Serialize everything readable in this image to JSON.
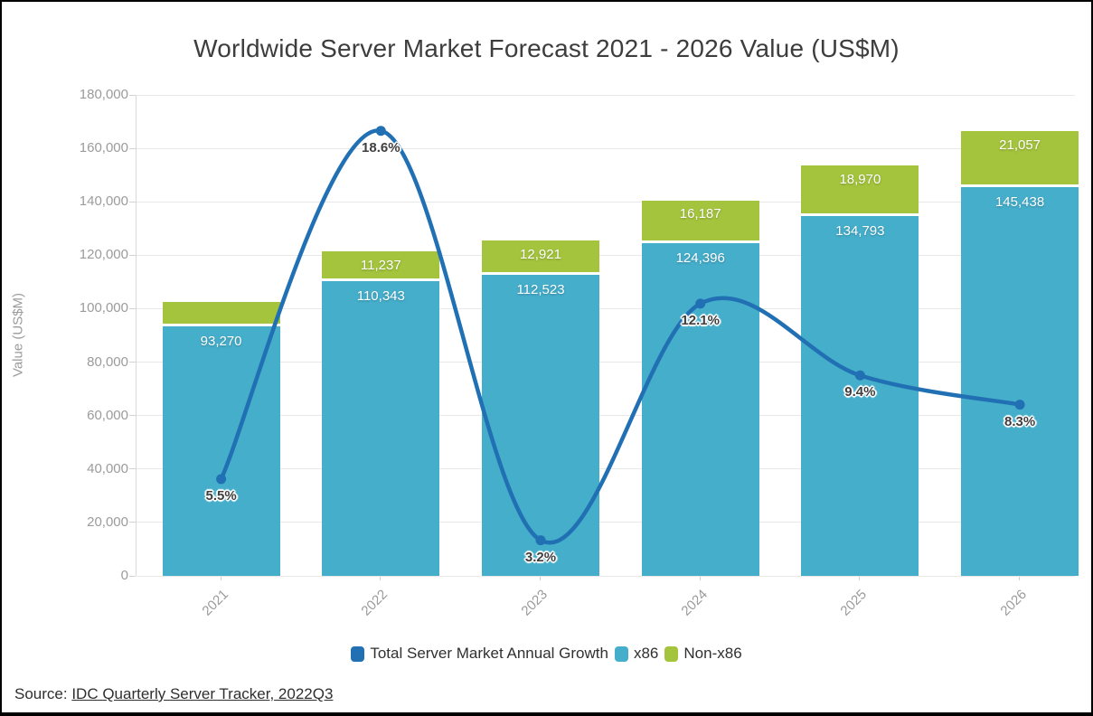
{
  "title": "Worldwide Server Market Forecast 2021 - 2026 Value (US$M)",
  "y_axis": {
    "title": "Value (US$M)",
    "tick_labels": [
      "180,000",
      "160,000",
      "140,000",
      "120,000",
      "100,000",
      "80,000",
      "60,000",
      "40,000",
      "20,000",
      "0"
    ],
    "min": 0,
    "max": 180000,
    "step": 20000
  },
  "x_axis": {
    "tick_labels": [
      "2021",
      "2022",
      "2023",
      "2024",
      "2025",
      "2026"
    ]
  },
  "legend": {
    "items": [
      {
        "label": "Total Server Market Annual Growth",
        "color": "#2170b4"
      },
      {
        "label": "x86",
        "color": "#45aecb"
      },
      {
        "label": "Non-x86",
        "color": "#a4c43d"
      }
    ]
  },
  "source": {
    "prefix": "Source: ",
    "link_text": "IDC Quarterly Server Tracker, 2022Q3"
  },
  "colors": {
    "x86_bar": "#45aecb",
    "non_x86_bar": "#a4c43d",
    "growth_line": "#2170b4",
    "gridline": "#e8e8e8",
    "axis_text": "#9b9b9b",
    "title_text": "#3d3d3d",
    "bar_label_text": "#ffffff",
    "growth_label_text": "#3f3f3f"
  },
  "chart_data": {
    "type": "bar",
    "subtype": "stacked-bars-with-line-overlay",
    "title": "Worldwide Server Market Forecast 2021 - 2026 Value (US$M)",
    "xlabel": "",
    "ylabel": "Value (US$M)",
    "ylim": [
      0,
      180000
    ],
    "grid": true,
    "legend_position": "bottom",
    "categories": [
      "2021",
      "2022",
      "2023",
      "2024",
      "2025",
      "2026"
    ],
    "series": [
      {
        "name": "x86",
        "kind": "bar-stack",
        "color": "#45aecb",
        "values": [
          93270,
          110343,
          112523,
          124396,
          134793,
          145438
        ],
        "data_labels": [
          "93,270",
          "110,343",
          "112,523",
          "124,396",
          "134,793",
          "145,438"
        ]
      },
      {
        "name": "Non-x86",
        "kind": "bar-stack",
        "color": "#a4c43d",
        "values": [
          9240,
          11237,
          12921,
          16187,
          18970,
          21057
        ],
        "data_labels": [
          "",
          "11,237",
          "12,921",
          "16,187",
          "18,970",
          "21,057"
        ]
      },
      {
        "name": "Total Server Market Annual Growth",
        "kind": "line",
        "color": "#2170b4",
        "values_percent": [
          5.5,
          18.6,
          3.2,
          12.1,
          9.4,
          8.3
        ],
        "data_labels": [
          "5.5%",
          "18.6%",
          "3.2%",
          "12.1%",
          "9.4%",
          "8.3%"
        ]
      }
    ],
    "growth_line_plot_map": {
      "value_per_percent": 9950,
      "value_offset": -18500
    }
  }
}
